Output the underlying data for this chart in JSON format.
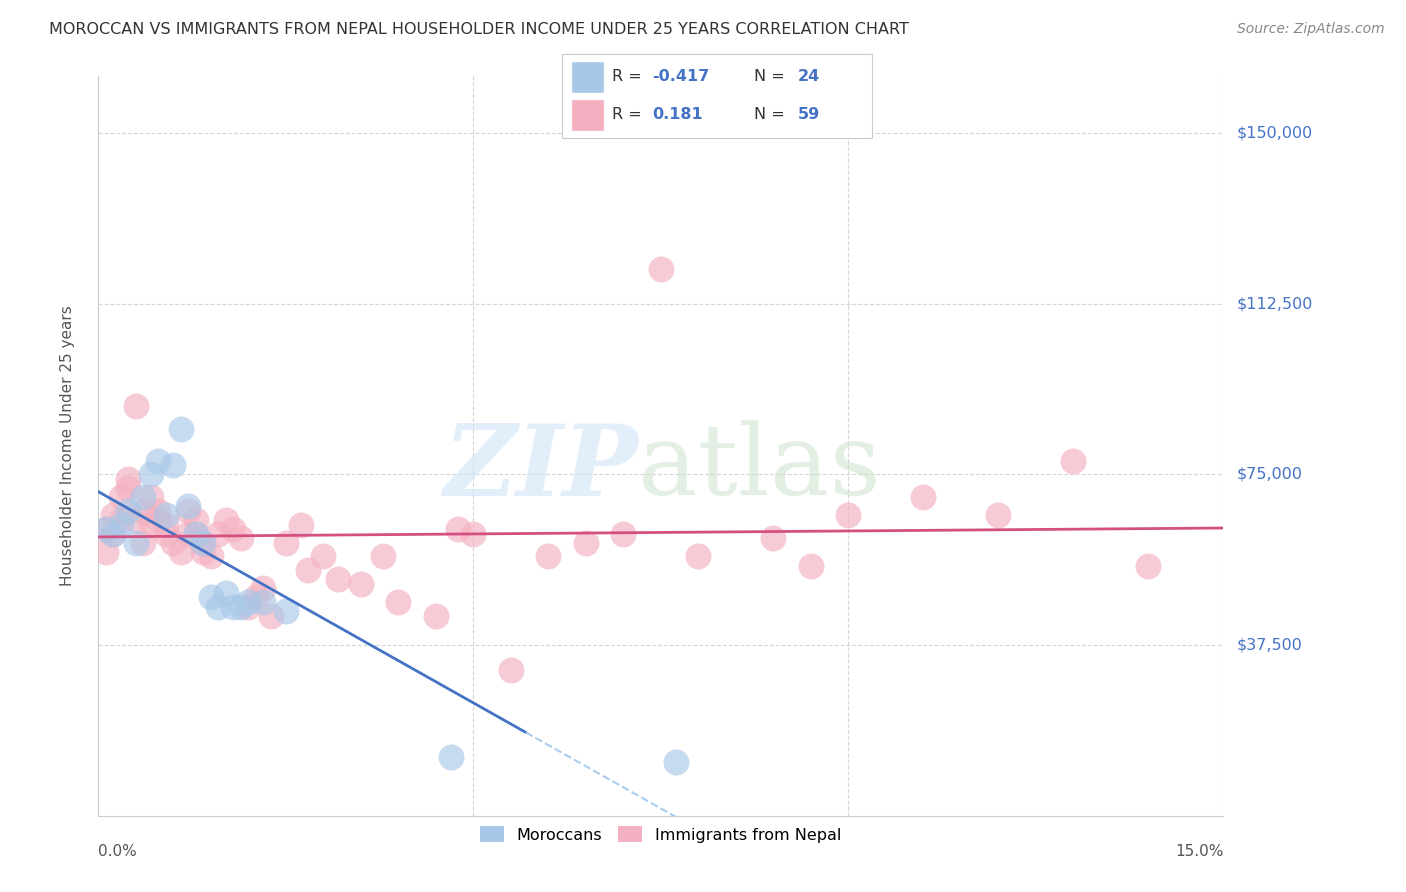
{
  "title": "MOROCCAN VS IMMIGRANTS FROM NEPAL HOUSEHOLDER INCOME UNDER 25 YEARS CORRELATION CHART",
  "source": "Source: ZipAtlas.com",
  "ylabel": "Householder Income Under 25 years",
  "y_tick_labels": [
    "$150,000",
    "$112,500",
    "$75,000",
    "$37,500"
  ],
  "y_tick_values": [
    150000,
    112500,
    75000,
    37500
  ],
  "y_min": 0,
  "y_max": 162500,
  "x_min": 0.0,
  "x_max": 0.15,
  "moroccan_color": "#a8c8e8",
  "nepal_color": "#f4b0c0",
  "moroccan_line_color": "#4472c4",
  "nepal_line_color": "#d45080",
  "moroccan_r": "-0.417",
  "moroccan_n": "24",
  "nepal_r": "0.181",
  "nepal_n": "59",
  "moroccan_x": [
    0.001,
    0.002,
    0.003,
    0.004,
    0.005,
    0.006,
    0.007,
    0.008,
    0.009,
    0.01,
    0.011,
    0.012,
    0.013,
    0.014,
    0.015,
    0.016,
    0.017,
    0.018,
    0.019,
    0.02,
    0.022,
    0.025,
    0.047,
    0.077
  ],
  "moroccan_y": [
    63000,
    62000,
    64000,
    67000,
    60000,
    70000,
    75000,
    78000,
    66000,
    77000,
    85000,
    68000,
    62000,
    60000,
    48000,
    46000,
    49000,
    46000,
    46000,
    47000,
    47000,
    45000,
    13000,
    12000
  ],
  "nepal_x": [
    0.001,
    0.001,
    0.002,
    0.002,
    0.003,
    0.003,
    0.004,
    0.004,
    0.005,
    0.005,
    0.006,
    0.006,
    0.007,
    0.007,
    0.008,
    0.008,
    0.009,
    0.009,
    0.01,
    0.011,
    0.012,
    0.012,
    0.013,
    0.013,
    0.014,
    0.014,
    0.015,
    0.016,
    0.017,
    0.018,
    0.019,
    0.02,
    0.021,
    0.022,
    0.023,
    0.025,
    0.027,
    0.028,
    0.03,
    0.032,
    0.035,
    0.038,
    0.04,
    0.045,
    0.048,
    0.05,
    0.055,
    0.06,
    0.065,
    0.07,
    0.075,
    0.08,
    0.09,
    0.095,
    0.1,
    0.11,
    0.12,
    0.13,
    0.14
  ],
  "nepal_y": [
    58000,
    63000,
    62000,
    66000,
    65000,
    70000,
    72000,
    74000,
    90000,
    65000,
    67000,
    60000,
    64000,
    70000,
    67000,
    65000,
    62000,
    64000,
    60000,
    58000,
    62000,
    67000,
    65000,
    62000,
    60000,
    58000,
    57000,
    62000,
    65000,
    63000,
    61000,
    46000,
    48000,
    50000,
    44000,
    60000,
    64000,
    54000,
    57000,
    52000,
    51000,
    57000,
    47000,
    44000,
    63000,
    62000,
    32000,
    57000,
    60000,
    62000,
    120000,
    57000,
    61000,
    55000,
    66000,
    70000,
    66000,
    78000,
    55000
  ]
}
